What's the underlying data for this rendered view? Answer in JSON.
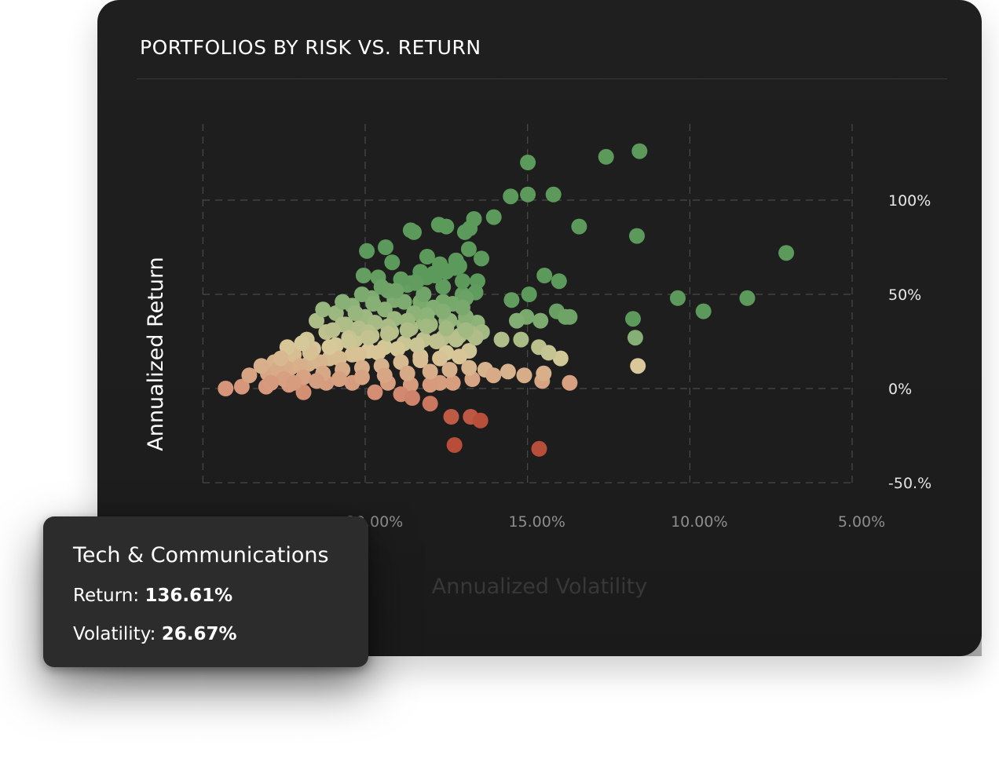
{
  "card": {
    "title": "PORTFOLIOS BY RISK VS. RETURN"
  },
  "chart_data": {
    "type": "scatter",
    "title": "PORTFOLIOS BY RISK VS. RETURN",
    "xlabel": "Annualized Volatility",
    "ylabel": "Annualized Return",
    "x_axis_reversed": true,
    "xlim": [
      25,
      5
    ],
    "ylim": [
      -50,
      150
    ],
    "x_ticks": [
      "20.00%",
      "15.00%",
      "10.00%",
      "5.00%"
    ],
    "x_tick_values": [
      20,
      15,
      10,
      5
    ],
    "y_ticks": [
      "100%",
      "50%",
      "0%",
      "-50.%"
    ],
    "y_tick_values": [
      100,
      50,
      0,
      -50
    ],
    "grid": true,
    "legend": "none",
    "color_scale": [
      "#b84e3a",
      "#d6957a",
      "#d8c99a",
      "#8fb47a",
      "#5c9a5c"
    ],
    "points": [
      [
        14.99,
        120
      ],
      [
        12.58,
        123
      ],
      [
        11.55,
        126
      ],
      [
        15.52,
        102
      ],
      [
        14.99,
        103
      ],
      [
        14.2,
        103
      ],
      [
        13.41,
        86
      ],
      [
        11.63,
        81
      ],
      [
        16.04,
        91
      ],
      [
        16.65,
        90
      ],
      [
        16.78,
        85
      ],
      [
        16.93,
        83
      ],
      [
        17.5,
        86
      ],
      [
        17.73,
        87
      ],
      [
        18.5,
        83
      ],
      [
        18.6,
        84
      ],
      [
        19.37,
        75
      ],
      [
        19.95,
        73
      ],
      [
        16.81,
        74
      ],
      [
        16.42,
        69
      ],
      [
        17.1,
        65
      ],
      [
        18.09,
        70
      ],
      [
        19.17,
        67
      ],
      [
        17.9,
        61
      ],
      [
        18.35,
        58
      ],
      [
        18.6,
        56
      ],
      [
        19.6,
        59
      ],
      [
        20.05,
        60
      ],
      [
        16.54,
        57
      ],
      [
        14.48,
        60
      ],
      [
        14.03,
        57
      ],
      [
        14.95,
        50
      ],
      [
        15.49,
        47
      ],
      [
        16.6,
        51
      ],
      [
        17.0,
        50
      ],
      [
        17.6,
        46
      ],
      [
        18.3,
        46
      ],
      [
        19.1,
        47
      ],
      [
        15.03,
        38
      ],
      [
        15.33,
        36
      ],
      [
        14.6,
        36
      ],
      [
        14.1,
        41
      ],
      [
        13.7,
        38
      ],
      [
        13.83,
        38
      ],
      [
        16.55,
        35
      ],
      [
        16.95,
        34
      ],
      [
        17.5,
        36
      ],
      [
        18.2,
        35
      ],
      [
        10.37,
        48
      ],
      [
        9.58,
        41
      ],
      [
        8.23,
        48
      ],
      [
        7.03,
        72
      ],
      [
        11.75,
        37
      ],
      [
        11.68,
        27
      ],
      [
        11.6,
        12
      ],
      [
        16.4,
        30
      ],
      [
        15.8,
        26
      ],
      [
        15.2,
        26
      ],
      [
        14.65,
        22
      ],
      [
        13.98,
        16
      ],
      [
        14.35,
        19
      ],
      [
        16.8,
        20
      ],
      [
        17.5,
        19
      ],
      [
        18.3,
        17
      ],
      [
        16.3,
        10
      ],
      [
        16.05,
        7
      ],
      [
        15.6,
        9
      ],
      [
        15.1,
        7
      ],
      [
        14.55,
        4
      ],
      [
        14.5,
        8
      ],
      [
        13.7,
        3
      ],
      [
        16.7,
        5
      ],
      [
        17.3,
        3
      ],
      [
        17.7,
        3
      ],
      [
        18.0,
        2
      ],
      [
        18.6,
        2
      ],
      [
        19.3,
        3
      ],
      [
        20.4,
        3
      ],
      [
        21.2,
        3
      ],
      [
        21.9,
        -2
      ],
      [
        19.7,
        -2
      ],
      [
        18.9,
        -3
      ],
      [
        18.55,
        -5
      ],
      [
        18.0,
        -8
      ],
      [
        17.35,
        -15
      ],
      [
        16.75,
        -15
      ],
      [
        16.45,
        -17
      ],
      [
        17.25,
        -30
      ],
      [
        14.64,
        -32
      ],
      [
        22.35,
        2
      ],
      [
        23.05,
        1
      ],
      [
        23.8,
        1
      ],
      [
        24.3,
        0
      ],
      [
        23.57,
        7
      ],
      [
        23.0,
        8
      ],
      [
        22.3,
        11
      ],
      [
        21.75,
        13
      ],
      [
        21.1,
        16
      ],
      [
        20.4,
        18
      ],
      [
        19.9,
        20
      ],
      [
        19.4,
        22
      ],
      [
        18.8,
        24
      ],
      [
        18.2,
        26
      ],
      [
        17.6,
        27
      ],
      [
        17.1,
        28
      ],
      [
        16.7,
        29
      ],
      [
        22.8,
        14
      ],
      [
        22.2,
        18
      ],
      [
        21.6,
        21
      ],
      [
        20.9,
        23
      ],
      [
        20.3,
        26
      ],
      [
        19.8,
        28
      ],
      [
        19.2,
        30
      ],
      [
        18.6,
        32
      ],
      [
        18.0,
        34
      ],
      [
        17.4,
        36
      ],
      [
        16.9,
        38
      ],
      [
        22.7,
        10
      ],
      [
        22.0,
        12
      ],
      [
        21.4,
        14
      ],
      [
        20.8,
        16
      ],
      [
        20.2,
        18
      ],
      [
        19.6,
        19
      ],
      [
        19.0,
        21
      ],
      [
        18.4,
        23
      ],
      [
        17.8,
        25
      ],
      [
        17.2,
        26
      ],
      [
        16.6,
        27
      ],
      [
        22.5,
        5
      ],
      [
        21.9,
        6
      ],
      [
        21.3,
        8
      ],
      [
        20.7,
        10
      ],
      [
        20.1,
        11
      ],
      [
        19.5,
        12
      ],
      [
        18.9,
        14
      ],
      [
        18.3,
        15
      ],
      [
        17.7,
        16
      ],
      [
        17.1,
        17
      ],
      [
        22.9,
        3
      ],
      [
        22.2,
        3
      ],
      [
        21.5,
        4
      ],
      [
        20.8,
        5
      ],
      [
        20.1,
        6
      ],
      [
        19.4,
        7
      ],
      [
        18.7,
        8
      ],
      [
        18.0,
        9
      ],
      [
        17.4,
        10
      ],
      [
        16.8,
        11
      ],
      [
        22.4,
        22
      ],
      [
        21.8,
        26
      ],
      [
        21.2,
        30
      ],
      [
        20.6,
        34
      ],
      [
        20.0,
        38
      ],
      [
        19.4,
        42
      ],
      [
        18.8,
        46
      ],
      [
        18.2,
        50
      ],
      [
        17.6,
        54
      ],
      [
        17.0,
        57
      ],
      [
        21.5,
        36
      ],
      [
        20.9,
        40
      ],
      [
        20.4,
        44
      ],
      [
        19.8,
        48
      ],
      [
        19.3,
        52
      ],
      [
        18.7,
        55
      ],
      [
        18.1,
        59
      ],
      [
        17.5,
        62
      ],
      [
        20.7,
        34
      ],
      [
        20.2,
        32
      ],
      [
        19.7,
        35
      ],
      [
        19.1,
        37
      ],
      [
        18.5,
        40
      ],
      [
        17.9,
        43
      ],
      [
        17.3,
        45
      ],
      [
        16.9,
        48
      ],
      [
        20.5,
        27
      ],
      [
        19.9,
        30
      ],
      [
        19.3,
        33
      ],
      [
        18.7,
        36
      ],
      [
        18.1,
        39
      ],
      [
        17.6,
        41
      ],
      [
        17.0,
        43
      ],
      [
        21.7,
        19
      ],
      [
        21.1,
        22
      ],
      [
        20.5,
        25
      ],
      [
        19.9,
        27
      ],
      [
        19.3,
        29
      ],
      [
        18.7,
        31
      ],
      [
        18.1,
        33
      ],
      [
        17.5,
        32
      ],
      [
        16.9,
        31
      ],
      [
        21.3,
        42
      ],
      [
        20.7,
        46
      ],
      [
        20.1,
        50
      ],
      [
        19.5,
        54
      ],
      [
        18.9,
        58
      ],
      [
        18.3,
        62
      ],
      [
        17.7,
        66
      ],
      [
        17.2,
        68
      ],
      [
        23.2,
        12
      ],
      [
        22.6,
        16
      ],
      [
        21.95,
        24
      ],
      [
        21.0,
        31
      ],
      [
        20.3,
        40
      ],
      [
        19.75,
        45
      ],
      [
        19.05,
        52
      ],
      [
        18.45,
        56
      ],
      [
        17.85,
        60
      ],
      [
        17.25,
        64
      ]
    ]
  },
  "tooltip": {
    "title": "Tech & Communications",
    "return_label": "Return:",
    "return_value": "136.61%",
    "volatility_label": "Volatility:",
    "volatility_value": "26.67%"
  }
}
